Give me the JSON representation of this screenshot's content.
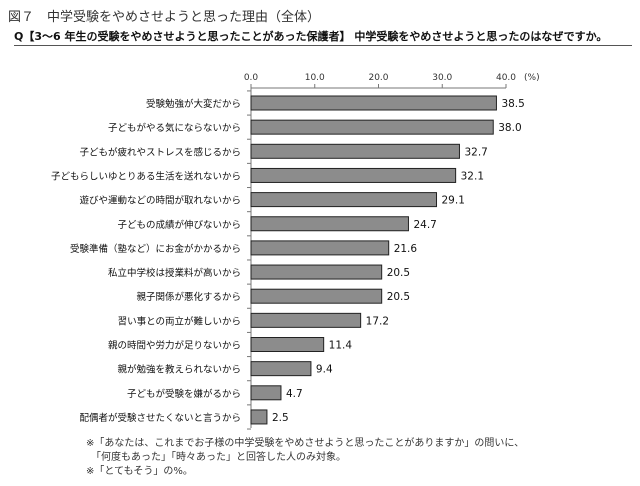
{
  "figure_title": "図７　中学受験をやめさせようと思った理由（全体）",
  "question": "Q【3～6 年生の受験をやめさせようと思ったことがあった保護者】 中学受験をやめさせようと思ったのはなぜですか。",
  "notes": [
    "※「あなたは、これまでお子様の中学受験をやめさせようと思ったことがありますか」の問いに、",
    "　「何度もあった」「時々あった」と回答した人のみ対象。",
    "※「とてもそう」の%。"
  ],
  "chart_data": {
    "type": "bar",
    "orientation": "horizontal",
    "title": "",
    "unit_label": "(%)",
    "xlim": [
      0,
      40
    ],
    "ticks": [
      0,
      10,
      20,
      30,
      40
    ],
    "tick_labels": [
      "0.0",
      "10.0",
      "20.0",
      "30.0",
      "40.0"
    ],
    "grid": false,
    "bar_color": "#8c8c8c",
    "categories": [
      "受験勉強が大変だから",
      "子どもがやる気にならないから",
      "子どもが疲れやストレスを感じるから",
      "子どもらしいゆとりある生活を送れないから",
      "遊びや運動などの時間が取れないから",
      "子どもの成績が伸びないから",
      "受験準備（塾など）にお金がかかるから",
      "私立中学校は授業料が高いから",
      "親子関係が悪化するから",
      "習い事との両立が難しいから",
      "親の時間や労力が足りないから",
      "親が勉強を教えられないから",
      "子どもが受験を嫌がるから",
      "配偶者が受験させたくないと言うから"
    ],
    "values": [
      38.5,
      38.0,
      32.7,
      32.1,
      29.1,
      24.7,
      21.6,
      20.5,
      20.5,
      17.2,
      11.4,
      9.4,
      4.7,
      2.5
    ],
    "value_labels": [
      "38.5",
      "38.0",
      "32.7",
      "32.1",
      "29.1",
      "24.7",
      "21.6",
      "20.5",
      "20.5",
      "17.2",
      "11.4",
      "9.4",
      "4.7",
      "2.5"
    ]
  }
}
